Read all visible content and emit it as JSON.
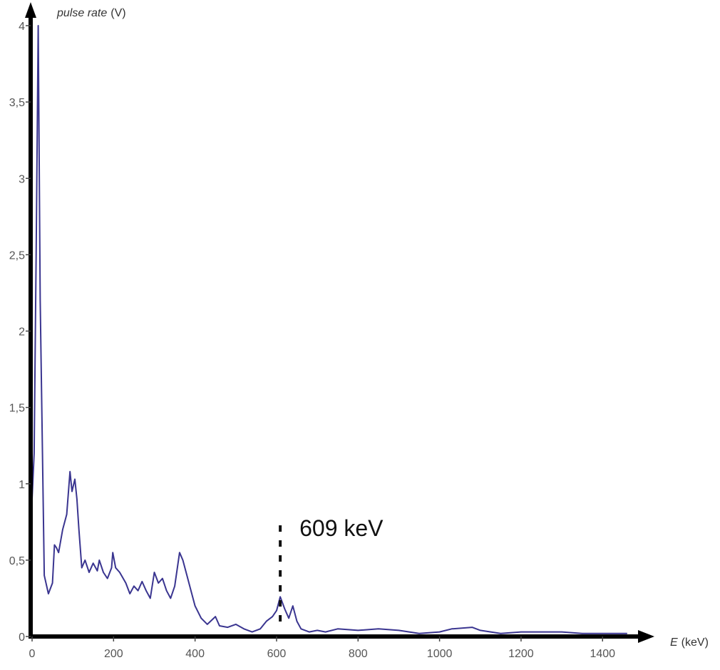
{
  "chart_data": {
    "type": "line",
    "title": "",
    "xlabel": {
      "italic": "E",
      "unit": "(keV)"
    },
    "ylabel": {
      "italic": "pulse rate",
      "unit": "(V)"
    },
    "xlim": [
      0,
      1480
    ],
    "ylim": [
      0,
      4
    ],
    "xticks": [
      0,
      200,
      400,
      600,
      800,
      1000,
      1200,
      1400
    ],
    "xtick_labels": [
      "0",
      "200",
      "400",
      "600",
      "800",
      "1000",
      "1200",
      "1400"
    ],
    "yticks": [
      0,
      0.5,
      1,
      1.5,
      2,
      2.5,
      3,
      3.5,
      4
    ],
    "ytick_labels": [
      "0",
      "0,5",
      "1",
      "1,5",
      "2",
      "2,5",
      "3",
      "3,5",
      "4"
    ],
    "grid": false,
    "line_color": "#3a3590",
    "series": [
      {
        "x": [
          0,
          5,
          10,
          15,
          20,
          30,
          40,
          50,
          55,
          60,
          65,
          75,
          85,
          93,
          98,
          105,
          110,
          115,
          122,
          130,
          140,
          150,
          160,
          165,
          175,
          185,
          195,
          198,
          205,
          215,
          230,
          240,
          250,
          260,
          270,
          280,
          290,
          300,
          310,
          320,
          330,
          340,
          350,
          362,
          370,
          380,
          390,
          400,
          415,
          430,
          450,
          460,
          480,
          500,
          520,
          540,
          560,
          575,
          590,
          600,
          609,
          620,
          630,
          640,
          650,
          660,
          680,
          700,
          720,
          750,
          800,
          850,
          900,
          950,
          1000,
          1030,
          1080,
          1100,
          1150,
          1200,
          1250,
          1300,
          1350,
          1400,
          1460
        ],
        "y": [
          0.9,
          1.2,
          2.5,
          4.0,
          2.2,
          0.4,
          0.28,
          0.35,
          0.6,
          0.58,
          0.55,
          0.7,
          0.8,
          1.08,
          0.95,
          1.03,
          0.9,
          0.7,
          0.45,
          0.5,
          0.42,
          0.48,
          0.43,
          0.5,
          0.42,
          0.38,
          0.45,
          0.55,
          0.45,
          0.42,
          0.35,
          0.28,
          0.33,
          0.3,
          0.36,
          0.3,
          0.25,
          0.42,
          0.35,
          0.38,
          0.3,
          0.25,
          0.33,
          0.55,
          0.5,
          0.4,
          0.3,
          0.2,
          0.12,
          0.08,
          0.13,
          0.07,
          0.06,
          0.08,
          0.05,
          0.03,
          0.05,
          0.1,
          0.13,
          0.17,
          0.26,
          0.18,
          0.12,
          0.2,
          0.1,
          0.05,
          0.03,
          0.04,
          0.03,
          0.05,
          0.04,
          0.05,
          0.04,
          0.02,
          0.03,
          0.05,
          0.06,
          0.04,
          0.02,
          0.03,
          0.03,
          0.03,
          0.02,
          0.02,
          0.02
        ]
      }
    ],
    "annotations": [
      {
        "text": "609 keV",
        "x": 609,
        "marker": "dotted vertical line"
      }
    ]
  }
}
